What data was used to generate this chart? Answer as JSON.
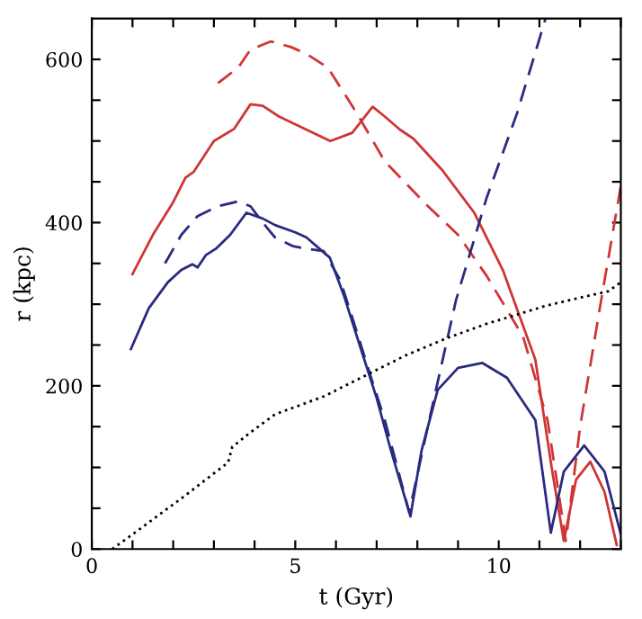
{
  "chart_data": {
    "type": "line",
    "xlabel": "t (Gyr)",
    "ylabel": "r (kpc)",
    "xlim": [
      0,
      13
    ],
    "ylim": [
      0,
      650
    ],
    "xticks": [
      0,
      {
        "value": 1,
        "label": null
      },
      {
        "value": 2,
        "label": null
      },
      {
        "value": 3,
        "label": null
      },
      {
        "value": 4,
        "label": null
      },
      5,
      {
        "value": 6,
        "label": null
      },
      {
        "value": 7,
        "label": null
      },
      {
        "value": 8,
        "label": null
      },
      {
        "value": 9,
        "label": null
      },
      10,
      {
        "value": 11,
        "label": null
      },
      {
        "value": 12,
        "label": null
      },
      {
        "value": 13,
        "label": null
      }
    ],
    "yticks": [
      0,
      {
        "value": 50,
        "label": null
      },
      {
        "value": 100,
        "label": null
      },
      {
        "value": 150,
        "label": null
      },
      200,
      {
        "value": 250,
        "label": null
      },
      {
        "value": 300,
        "label": null
      },
      {
        "value": 350,
        "label": null
      },
      400,
      {
        "value": 450,
        "label": null
      },
      {
        "value": 500,
        "label": null
      },
      {
        "value": 550,
        "label": null
      },
      600
    ],
    "grid": false,
    "legend": false,
    "marker": "none",
    "series": [
      {
        "color": "#d03535",
        "line_style": "solid",
        "x": [
          1.0,
          1.5,
          2.0,
          2.3,
          2.5,
          3.0,
          3.5,
          3.9,
          4.2,
          4.6,
          5.27,
          5.86,
          6.4,
          6.9,
          7.2,
          7.57,
          7.9,
          8.6,
          9.4,
          10.1,
          10.9,
          11.3,
          11.6,
          11.9,
          12.25,
          12.6,
          12.9
        ],
        "values": [
          337,
          385,
          425,
          455,
          462,
          500,
          515,
          545,
          543,
          530,
          514,
          500,
          510,
          542,
          530,
          514,
          503,
          465,
          412,
          342,
          232,
          100,
          10,
          85,
          107,
          70,
          5
        ]
      },
      {
        "color": "#d03535",
        "line_style": "dashed",
        "x": [
          3.1,
          3.6,
          3.9,
          4.4,
          4.9,
          5.27,
          5.8,
          6.5,
          7.2,
          8.2,
          9.0,
          9.7,
          10.6,
          11.2,
          11.65,
          12.0,
          12.5,
          13.0
        ],
        "values": [
          571,
          590,
          612,
          622,
          615,
          607,
          590,
          535,
          475,
          423,
          385,
          335,
          260,
          158,
          10,
          150,
          300,
          445
        ]
      },
      {
        "color": "#2a2a80",
        "line_style": "solid",
        "x": [
          0.96,
          1.4,
          1.87,
          2.2,
          2.47,
          2.6,
          2.8,
          3.05,
          3.4,
          3.8,
          4.2,
          4.5,
          5.0,
          5.27,
          5.85,
          6.2,
          6.6,
          7.0,
          7.35,
          7.83,
          8.1,
          8.5,
          9.0,
          9.6,
          10.2,
          10.9,
          11.28,
          11.6,
          12.1,
          12.6,
          13.0
        ],
        "values": [
          245,
          295,
          327,
          342,
          349,
          345,
          360,
          368,
          385,
          412,
          405,
          397,
          388,
          382,
          357,
          310,
          247,
          185,
          121,
          40,
          120,
          195,
          222,
          228,
          210,
          158,
          20,
          95,
          127,
          95,
          18
        ]
      },
      {
        "color": "#2a2a80",
        "line_style": "dashed",
        "x": [
          1.8,
          2.2,
          2.6,
          3.1,
          3.6,
          3.9,
          4.2,
          4.5,
          4.95,
          5.27,
          5.7,
          6.1,
          6.45,
          6.8,
          7.2,
          7.8,
          8.3,
          8.95,
          9.7,
          10.45,
          11.15
        ],
        "values": [
          350,
          385,
          408,
          420,
          426,
          420,
          400,
          382,
          371,
          368,
          365,
          330,
          276,
          220,
          158,
          45,
          160,
          305,
          430,
          534,
          650
        ]
      },
      {
        "color": "#000000",
        "line_style": "dotted",
        "x": [
          0.5,
          1.0,
          1.6,
          2.2,
          2.8,
          3.35,
          3.45,
          3.9,
          4.5,
          5.1,
          5.7,
          6.7,
          7.7,
          8.7,
          9.7,
          10.5,
          11.15,
          12.0,
          12.7,
          13.0
        ],
        "values": [
          0,
          18,
          40,
          62,
          85,
          106,
          125,
          143,
          165,
          176,
          187,
          212,
          237,
          258,
          276,
          288,
          298,
          308,
          316,
          327
        ]
      }
    ]
  }
}
